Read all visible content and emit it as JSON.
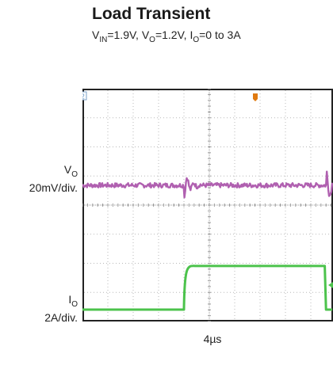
{
  "title": "Load Transient",
  "subtitle": {
    "vin_sym": "V",
    "vin_sub": "IN",
    "vin_val": "=1.9V, ",
    "vo_sym": "V",
    "vo_sub": "O",
    "vo_val": "=1.2V, ",
    "io_sym": "I",
    "io_sub": "O",
    "io_val": "=0 to 3A"
  },
  "channels": {
    "vo": {
      "sym": "V",
      "sub": "O",
      "scale": "20mV/div.",
      "marker": "3",
      "color": "#b060b0"
    },
    "io": {
      "sym": "I",
      "sub": "O",
      "scale": "2A/div.",
      "marker": "1",
      "color": "#4cc34c"
    }
  },
  "timebase": "4µs",
  "chart_data": {
    "type": "line",
    "x_unit": "µs",
    "x_per_div": 4,
    "divisions": {
      "x": 10,
      "y": 8
    },
    "grid": true,
    "series": [
      {
        "name": "VO",
        "scale": "20mV/div.",
        "x": [
          0,
          16,
          16.6,
          18,
          28,
          38.4,
          39.2,
          41,
          43,
          44.3
        ],
        "y": [
          0,
          0,
          -12,
          0,
          0,
          0,
          12,
          0,
          0,
          0
        ]
      },
      {
        "name": "IO",
        "scale": "2A/div.",
        "x": [
          0,
          16,
          16.2,
          17.5,
          38.2,
          38.4,
          44.3
        ],
        "y": [
          0,
          0,
          2.5,
          3,
          3,
          0,
          0
        ]
      }
    ]
  }
}
